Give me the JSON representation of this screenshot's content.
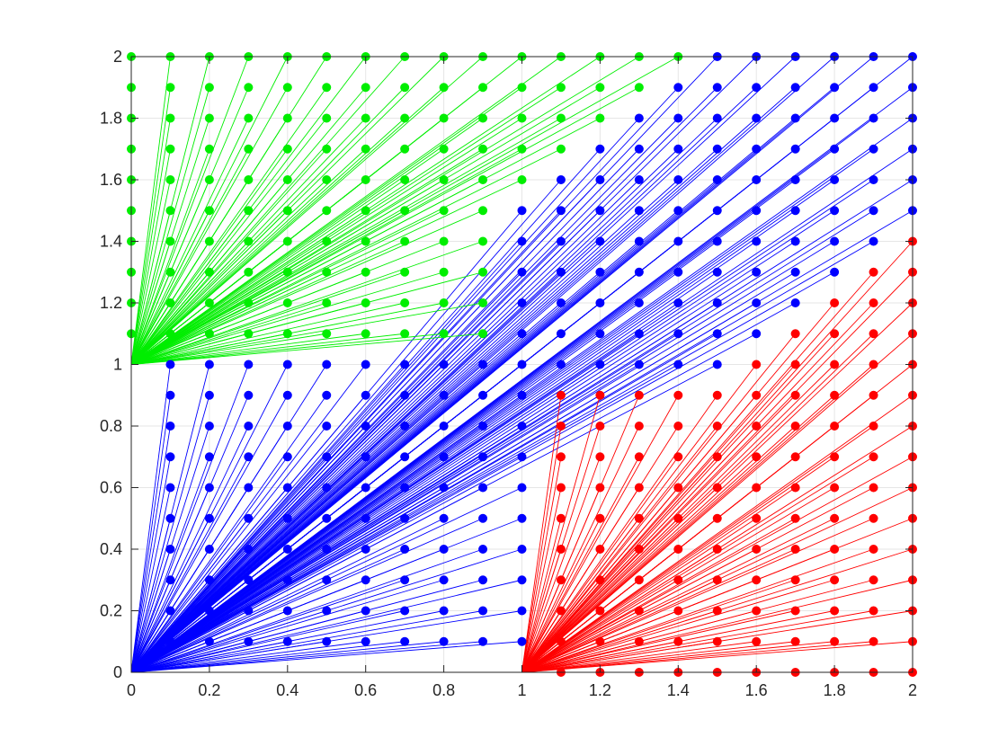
{
  "chart_data": {
    "type": "scatter",
    "description_free": true,
    "xlim": [
      0,
      2
    ],
    "ylim": [
      0,
      2
    ],
    "grid": true,
    "xticks": [
      "0",
      "0.2",
      "0.4",
      "0.6",
      "0.8",
      "1",
      "1.2",
      "1.4",
      "1.6",
      "1.8",
      "2"
    ],
    "yticks": [
      "0",
      "0.2",
      "0.4",
      "0.6",
      "0.8",
      "1",
      "1.2",
      "1.4",
      "1.6",
      "1.8",
      "2"
    ],
    "grid_step": 0.1,
    "series": [
      {
        "color": "#00ee00",
        "anchor": [
          0,
          1
        ],
        "rule": "points with x <= 0.9 and y >= 1.1, plus upper-right band where y - x >= 0.6",
        "points_desc": "green"
      },
      {
        "color": "#0000ff",
        "anchor": [
          0,
          0
        ],
        "rule": "remaining points",
        "points_desc": "blue"
      },
      {
        "color": "#ff0000",
        "anchor": [
          1,
          0
        ],
        "rule": "points with x >= 1.1 and y <= 0.9, plus lower-right band where x - y >= 0.6",
        "points_desc": "red"
      }
    ]
  }
}
